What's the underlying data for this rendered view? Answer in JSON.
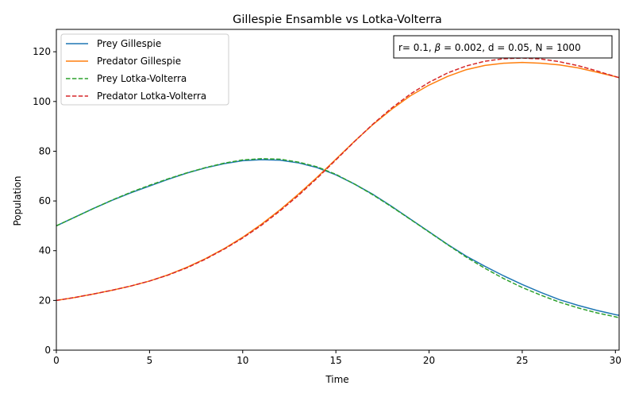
{
  "chart_data": {
    "type": "line",
    "title": "Gillespie Ensamble vs Lotka-Volterra",
    "xlabel": "Time",
    "ylabel": "Population",
    "xlim": [
      0,
      30.2
    ],
    "ylim": [
      0,
      129
    ],
    "xticks": [
      0,
      5,
      10,
      15,
      20,
      25,
      30
    ],
    "yticks": [
      0,
      20,
      40,
      60,
      80,
      100,
      120
    ],
    "grid": false,
    "legend_position": "top-left",
    "annotation": {
      "prefix": "r= 0.1, ",
      "beta_symbol": "β",
      "suffix": " = 0.002, d = 0.05, N = 1000",
      "position": "top-right"
    },
    "x": [
      0,
      1,
      2,
      3,
      4,
      5,
      6,
      7,
      8,
      9,
      10,
      11,
      12,
      13,
      14,
      15,
      16,
      17,
      18,
      19,
      20,
      21,
      22,
      23,
      24,
      25,
      26,
      27,
      28,
      29,
      30,
      30.2
    ],
    "series": [
      {
        "name": "Prey Gillespie",
        "color": "#1f77b4",
        "dash": false,
        "values": [
          50,
          53.5,
          57,
          60.3,
          63.3,
          66,
          68.7,
          71.2,
          73.3,
          75.0,
          76.2,
          76.6,
          76.4,
          75.3,
          73.4,
          70.5,
          66.8,
          62.6,
          57.8,
          52.7,
          47.6,
          42.5,
          37.8,
          33.7,
          29.9,
          26.4,
          23.2,
          20.3,
          18.0,
          16.0,
          14.3,
          14.0
        ]
      },
      {
        "name": "Predator Gillespie",
        "color": "#ff7f0e",
        "dash": false,
        "values": [
          20,
          21.2,
          22.6,
          24.1,
          25.8,
          27.8,
          30.3,
          33.3,
          36.8,
          40.8,
          45.4,
          50.6,
          56.4,
          62.8,
          69.6,
          76.8,
          84.0,
          90.8,
          96.9,
          102.3,
          106.6,
          110.1,
          112.8,
          114.5,
          115.4,
          115.7,
          115.4,
          114.7,
          113.5,
          111.8,
          110.0,
          109.6
        ]
      },
      {
        "name": "Prey Lotka-Volterra",
        "color": "#2ca02c",
        "dash": true,
        "values": [
          50,
          53.5,
          57,
          60.4,
          63.5,
          66.3,
          68.9,
          71.3,
          73.4,
          75.2,
          76.5,
          77.0,
          76.8,
          75.6,
          73.7,
          70.7,
          66.8,
          62.4,
          57.6,
          52.6,
          47.5,
          42.4,
          37.4,
          32.9,
          28.8,
          25.2,
          22.1,
          19.3,
          17.0,
          15.0,
          13.4,
          13.0
        ]
      },
      {
        "name": "Predator Lotka-Volterra",
        "color": "#d62728",
        "dash": true,
        "values": [
          20,
          21.2,
          22.6,
          24.1,
          25.8,
          27.8,
          30.2,
          33.1,
          36.6,
          40.6,
          45.1,
          50.2,
          56.0,
          62.3,
          69.2,
          76.5,
          83.9,
          91.0,
          97.4,
          103.0,
          107.7,
          111.5,
          114.3,
          116.2,
          117.2,
          117.5,
          117.1,
          116.0,
          114.4,
          112.3,
          110.0,
          109.6
        ]
      }
    ]
  }
}
